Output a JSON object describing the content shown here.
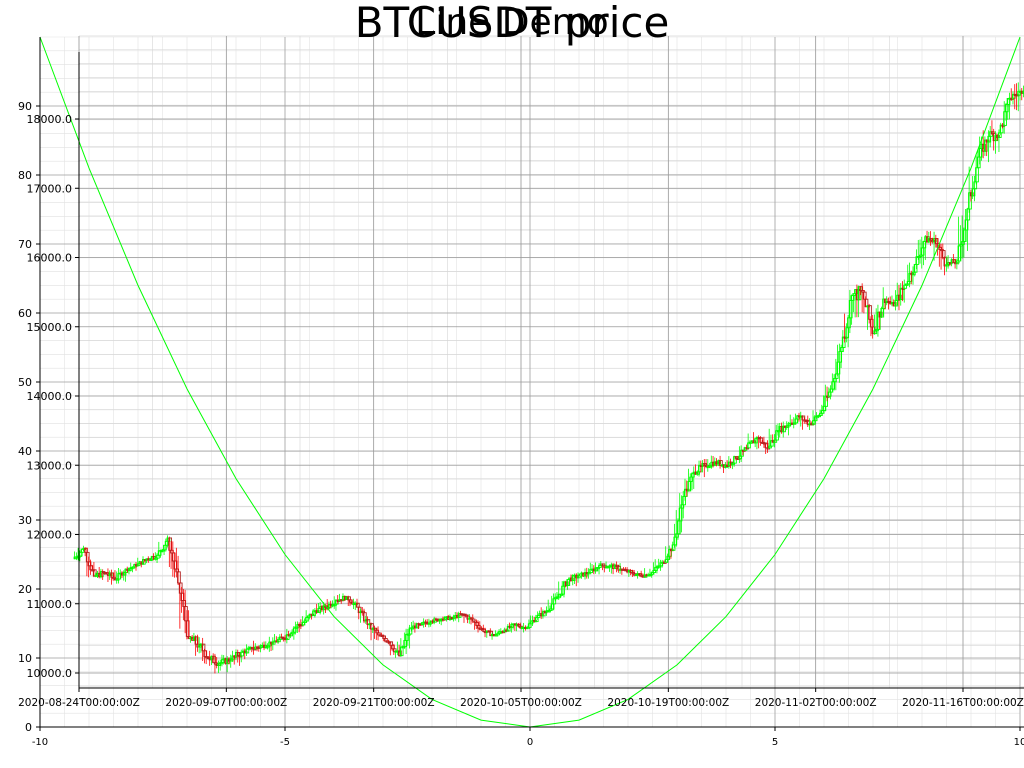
{
  "chart_data": [
    {
      "type": "candlestick",
      "title": "BTCUSDT price",
      "x_ticks": [
        "2020-08-24T00:00:00Z",
        "2020-09-07T00:00:00Z",
        "2020-09-21T00:00:00Z",
        "2020-10-05T00:00:00Z",
        "2020-10-19T00:00:00Z",
        "2020-11-02T00:00:00Z",
        "2020-11-16T00:00:00Z"
      ],
      "y_ticks": [
        "10000.0",
        "11000.0",
        "12000.0",
        "13000.0",
        "14000.0",
        "15000.0",
        "16000.0",
        "17000.0",
        "18000.0"
      ],
      "ylim": [
        9800,
        19200
      ],
      "xlim": [
        "2020-08-20",
        "2020-11-26"
      ],
      "grid": true,
      "colors": {
        "up": "#00ff00",
        "down": "#ff0000",
        "down_body": "#b22222"
      },
      "series": [
        {
          "x": [
            "2020-08-24",
            "2020-08-25",
            "2020-08-26",
            "2020-08-27",
            "2020-08-28",
            "2020-08-29",
            "2020-08-30",
            "2020-08-31",
            "2020-09-01",
            "2020-09-02",
            "2020-09-03",
            "2020-09-04",
            "2020-09-05",
            "2020-09-06",
            "2020-09-07",
            "2020-09-08",
            "2020-09-09",
            "2020-09-10",
            "2020-09-11",
            "2020-09-12",
            "2020-09-13",
            "2020-09-14",
            "2020-09-15",
            "2020-09-16",
            "2020-09-17",
            "2020-09-18",
            "2020-09-19",
            "2020-09-20",
            "2020-09-21",
            "2020-09-22",
            "2020-09-23",
            "2020-09-24",
            "2020-09-25",
            "2020-09-26",
            "2020-09-27",
            "2020-09-28",
            "2020-09-29",
            "2020-09-30",
            "2020-10-01",
            "2020-10-02",
            "2020-10-03",
            "2020-10-04",
            "2020-10-05",
            "2020-10-06",
            "2020-10-07",
            "2020-10-08",
            "2020-10-09",
            "2020-10-10",
            "2020-10-11",
            "2020-10-12",
            "2020-10-13",
            "2020-10-14",
            "2020-10-15",
            "2020-10-16",
            "2020-10-17",
            "2020-10-18",
            "2020-10-19",
            "2020-10-20",
            "2020-10-21",
            "2020-10-22",
            "2020-10-23",
            "2020-10-24",
            "2020-10-25",
            "2020-10-26",
            "2020-10-27",
            "2020-10-28",
            "2020-10-29",
            "2020-10-30",
            "2020-10-31",
            "2020-11-01",
            "2020-11-02",
            "2020-11-03",
            "2020-11-04",
            "2020-11-05",
            "2020-11-06",
            "2020-11-07",
            "2020-11-08",
            "2020-11-09",
            "2020-11-10",
            "2020-11-11",
            "2020-11-12",
            "2020-11-13",
            "2020-11-14",
            "2020-11-15",
            "2020-11-16",
            "2020-11-17",
            "2020-11-18",
            "2020-11-19",
            "2020-11-20",
            "2020-11-21",
            "2020-11-22",
            "2020-11-23",
            "2020-11-24",
            "2020-11-25"
          ],
          "open": [
            11650,
            11800,
            11400,
            11450,
            11350,
            11500,
            11550,
            11650,
            11700,
            11950,
            11300,
            10500,
            10400,
            10200,
            10150,
            10200,
            10300,
            10350,
            10400,
            10450,
            10500,
            10650,
            10750,
            10900,
            10950,
            11050,
            11100,
            10950,
            10700,
            10550,
            10450,
            10250,
            10650,
            10700,
            10750,
            10780,
            10800,
            10850,
            10750,
            10600,
            10550,
            10620,
            10700,
            10650,
            10800,
            10900,
            11100,
            11350,
            11400,
            11450,
            11550,
            11550,
            11500,
            11450,
            11400,
            11450,
            11600,
            11850,
            12550,
            12900,
            13000,
            13050,
            13000,
            13100,
            13250,
            13400,
            13250,
            13500,
            13600,
            13700,
            13600,
            13750,
            14100,
            14700,
            15450,
            15500,
            14900,
            15400,
            15300,
            15600,
            15900,
            16300,
            16200,
            15900,
            15950,
            16700,
            17450,
            17750,
            17800,
            18300,
            18400,
            18600,
            18500,
            19000
          ],
          "close": [
            11800,
            11400,
            11450,
            11350,
            11500,
            11550,
            11650,
            11700,
            11950,
            11300,
            10500,
            10400,
            10200,
            10150,
            10200,
            10300,
            10350,
            10400,
            10450,
            10500,
            10650,
            10750,
            10900,
            10950,
            11050,
            11100,
            10950,
            10700,
            10550,
            10450,
            10250,
            10650,
            10700,
            10750,
            10780,
            10800,
            10850,
            10750,
            10600,
            10550,
            10620,
            10700,
            10650,
            10800,
            10900,
            11100,
            11350,
            11400,
            11450,
            11550,
            11550,
            11500,
            11450,
            11400,
            11450,
            11600,
            11850,
            12550,
            12900,
            13000,
            13050,
            13000,
            13100,
            13250,
            13400,
            13250,
            13500,
            13600,
            13700,
            13600,
            13750,
            14100,
            14700,
            15450,
            15500,
            14900,
            15400,
            15300,
            15600,
            15900,
            16300,
            16200,
            15900,
            15950,
            16700,
            17450,
            17750,
            17800,
            18300,
            18400,
            18600,
            18500,
            19000,
            18800
          ],
          "high": [
            11880,
            11850,
            11580,
            11600,
            11560,
            11640,
            11720,
            11820,
            12050,
            11980,
            11350,
            10680,
            10560,
            10400,
            10300,
            10400,
            10450,
            10520,
            10560,
            10620,
            10780,
            10880,
            11020,
            11080,
            11160,
            11200,
            11140,
            10990,
            10740,
            10600,
            10520,
            10720,
            10790,
            10830,
            10860,
            10900,
            10920,
            10900,
            10820,
            10680,
            10700,
            10780,
            10760,
            10880,
            11000,
            11200,
            11420,
            11480,
            11560,
            11640,
            11650,
            11640,
            11560,
            11520,
            11560,
            11700,
            11950,
            12700,
            13050,
            13150,
            13200,
            13180,
            13250,
            13350,
            13550,
            13500,
            13650,
            13750,
            13850,
            13800,
            13880,
            14250,
            14850,
            15600,
            15700,
            15550,
            15650,
            15500,
            15750,
            16050,
            16450,
            16500,
            16350,
            16100,
            16850,
            17600,
            17950,
            18100,
            18450,
            18600,
            18750,
            18800,
            19150,
            19200
          ],
          "low": [
            11550,
            11300,
            11250,
            11200,
            11250,
            11400,
            11450,
            11550,
            11600,
            11250,
            10400,
            10050,
            9950,
            9900,
            9950,
            10000,
            10150,
            10200,
            10250,
            10300,
            10400,
            10500,
            10650,
            10800,
            10850,
            10950,
            10850,
            10600,
            10400,
            10350,
            10100,
            10150,
            10550,
            10600,
            10650,
            10700,
            10700,
            10650,
            10550,
            10450,
            10500,
            10550,
            10550,
            10600,
            10750,
            10850,
            11000,
            11200,
            11300,
            11350,
            11400,
            11380,
            11350,
            11300,
            11350,
            11400,
            11550,
            11750,
            12450,
            12750,
            12850,
            12850,
            12900,
            13000,
            13150,
            13100,
            13200,
            13350,
            13450,
            13450,
            13550,
            13650,
            14000,
            14550,
            14800,
            14700,
            14800,
            15200,
            15150,
            15500,
            15750,
            15800,
            15650,
            15750,
            15850,
            16600,
            17250,
            17400,
            17700,
            18000,
            18200,
            18250,
            18400,
            18600
          ]
        }
      ]
    },
    {
      "type": "line",
      "title": "Line Demo",
      "x_ticks": [
        "-10",
        "-5",
        "0",
        "5",
        "10"
      ],
      "y_ticks": [
        "0",
        "10",
        "20",
        "30",
        "40",
        "50",
        "60",
        "70",
        "80",
        "90"
      ],
      "xlim": [
        -10,
        10
      ],
      "ylim": [
        0,
        100
      ],
      "colors": {
        "line": "#00ff00"
      },
      "series": [
        {
          "x": [
            -10,
            -9,
            -8,
            -7,
            -6,
            -5,
            -4,
            -3,
            -2,
            -1,
            0,
            1,
            2,
            3,
            4,
            5,
            6,
            7,
            8,
            9,
            10
          ],
          "y": [
            100,
            81,
            64,
            49,
            36,
            25,
            16,
            9,
            4,
            1,
            0,
            1,
            4,
            9,
            16,
            25,
            36,
            49,
            64,
            81,
            100
          ]
        }
      ]
    }
  ]
}
